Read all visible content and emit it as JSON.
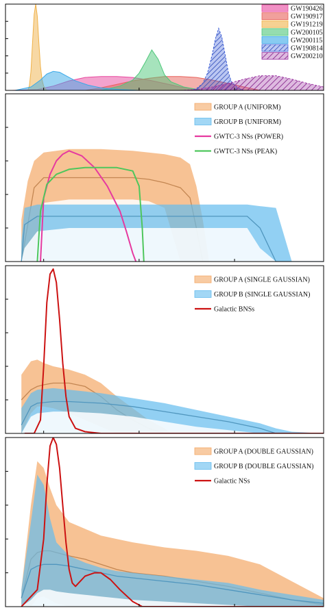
{
  "chart_data": [
    {
      "type": "area",
      "panel": "top",
      "legend_position": "top-right",
      "xlim": [
        0,
        1
      ],
      "ylim": [
        0,
        1
      ],
      "series": [
        {
          "name": "GW190426",
          "color": "#e8479e",
          "hatch": false,
          "x": [
            0.02,
            0.1,
            0.15,
            0.2,
            0.25,
            0.3,
            0.35,
            0.4,
            0.45,
            0.5,
            0.55,
            0.62
          ],
          "y": [
            0,
            0.01,
            0.05,
            0.11,
            0.15,
            0.16,
            0.16,
            0.15,
            0.12,
            0.08,
            0.04,
            0
          ]
        },
        {
          "name": "GW190917",
          "color": "#e8615a",
          "hatch": false,
          "x": [
            0.25,
            0.3,
            0.35,
            0.4,
            0.45,
            0.5,
            0.55,
            0.6,
            0.65,
            0.7,
            0.75,
            0.8
          ],
          "y": [
            0,
            0.03,
            0.07,
            0.11,
            0.14,
            0.16,
            0.16,
            0.15,
            0.12,
            0.08,
            0.04,
            0
          ]
        },
        {
          "name": "GW191219",
          "color": "#f0b24a",
          "hatch": false,
          "x": [
            0.07,
            0.075,
            0.08,
            0.085,
            0.09,
            0.095,
            0.1,
            0.105,
            0.11,
            0.115,
            0.12,
            0.125,
            0.13
          ],
          "y": [
            0,
            0.05,
            0.22,
            0.55,
            0.88,
            1.0,
            0.86,
            0.55,
            0.28,
            0.12,
            0.05,
            0.02,
            0
          ]
        },
        {
          "name": "GW200105",
          "color": "#4ec77a",
          "hatch": false,
          "x": [
            0.3,
            0.36,
            0.4,
            0.42,
            0.44,
            0.46,
            0.48,
            0.5,
            0.52,
            0.56,
            0.62
          ],
          "y": [
            0,
            0.05,
            0.12,
            0.2,
            0.33,
            0.47,
            0.36,
            0.18,
            0.1,
            0.04,
            0
          ]
        },
        {
          "name": "GW200115",
          "color": "#39a9e8",
          "hatch": false,
          "x": [
            0.03,
            0.08,
            0.11,
            0.13,
            0.15,
            0.17,
            0.19,
            0.22,
            0.26,
            0.3,
            0.36,
            0.42
          ],
          "y": [
            0,
            0.04,
            0.12,
            0.19,
            0.22,
            0.21,
            0.17,
            0.11,
            0.06,
            0.03,
            0.01,
            0
          ]
        },
        {
          "name": "GW190814",
          "color": "#3d5fd8",
          "hatch": true,
          "x": [
            0.58,
            0.6,
            0.62,
            0.635,
            0.65,
            0.66,
            0.67,
            0.68,
            0.69,
            0.7,
            0.71,
            0.73,
            0.75
          ],
          "y": [
            0,
            0.02,
            0.08,
            0.2,
            0.42,
            0.6,
            0.72,
            0.62,
            0.42,
            0.22,
            0.1,
            0.03,
            0
          ]
        },
        {
          "name": "GW200210",
          "color": "#a03aa6",
          "hatch": true,
          "x": [
            0.55,
            0.6,
            0.65,
            0.7,
            0.75,
            0.8,
            0.85,
            0.9,
            0.95,
            1.0
          ],
          "y": [
            0,
            0.01,
            0.04,
            0.08,
            0.13,
            0.17,
            0.17,
            0.13,
            0.08,
            0.04
          ]
        }
      ]
    },
    {
      "type": "area",
      "panel": "uniform",
      "legend_position": "top-right",
      "xlim": [
        0,
        1
      ],
      "ylim": [
        0,
        1
      ],
      "bands": [
        {
          "name": "GROUP A (UNIFORM)",
          "color": "#f4a866",
          "x": [
            0.05,
            0.07,
            0.09,
            0.12,
            0.2,
            0.3,
            0.4,
            0.45,
            0.5,
            0.55,
            0.58,
            0.6,
            0.62,
            0.64
          ],
          "upper": [
            0.25,
            0.48,
            0.6,
            0.65,
            0.67,
            0.67,
            0.66,
            0.65,
            0.64,
            0.62,
            0.58,
            0.45,
            0.25,
            0.0
          ],
          "lower": [
            0.0,
            0.0,
            0.0,
            0.0,
            0.0,
            0.0,
            0.0,
            0.0,
            0.0,
            0.0,
            0.0,
            0.0,
            0.0,
            0.0
          ],
          "inner_lower": [
            0.0,
            0.0,
            0.0,
            0.35,
            0.37,
            0.37,
            0.37,
            0.36,
            0.32,
            0.0,
            0.0,
            0.0,
            0.0,
            0.0
          ],
          "median": [
            0.0,
            0.22,
            0.44,
            0.5,
            0.5,
            0.5,
            0.5,
            0.49,
            0.47,
            0.44,
            0.38,
            0.2,
            0.0,
            0.0
          ]
        },
        {
          "name": "GROUP B (UNIFORM)",
          "color": "#64bcee",
          "x": [
            0.05,
            0.06,
            0.1,
            0.2,
            0.3,
            0.4,
            0.5,
            0.6,
            0.7,
            0.76,
            0.8,
            0.85,
            0.9,
            1.0
          ],
          "upper": [
            0.12,
            0.32,
            0.34,
            0.34,
            0.34,
            0.34,
            0.34,
            0.34,
            0.34,
            0.34,
            0.33,
            0.32,
            0.0,
            0.0
          ],
          "lower": [
            0.0,
            0.0,
            0.0,
            0.0,
            0.0,
            0.0,
            0.0,
            0.0,
            0.0,
            0.0,
            0.0,
            0.0,
            0.0,
            0.0
          ],
          "inner_lower": [
            0.0,
            0.08,
            0.18,
            0.2,
            0.2,
            0.2,
            0.2,
            0.2,
            0.2,
            0.2,
            0.08,
            0.0,
            0.0,
            0.0
          ],
          "median": [
            0.0,
            0.22,
            0.27,
            0.27,
            0.27,
            0.27,
            0.27,
            0.27,
            0.27,
            0.27,
            0.2,
            0.0,
            0.0,
            0.0
          ]
        }
      ],
      "lines": [
        {
          "name": "GWTC-3 NSs (POWER)",
          "color": "#e6399f",
          "x": [
            0.11,
            0.12,
            0.14,
            0.16,
            0.18,
            0.2,
            0.24,
            0.28,
            0.32,
            0.36,
            0.38,
            0.4,
            0.41
          ],
          "y": [
            0.0,
            0.38,
            0.52,
            0.6,
            0.64,
            0.66,
            0.63,
            0.56,
            0.45,
            0.3,
            0.18,
            0.05,
            0.0
          ]
        },
        {
          "name": "GWTC-3 NSs (PEAK)",
          "color": "#4ec65c",
          "x": [
            0.1,
            0.11,
            0.13,
            0.16,
            0.2,
            0.25,
            0.3,
            0.35,
            0.4,
            0.42,
            0.43,
            0.435
          ],
          "y": [
            0.0,
            0.3,
            0.46,
            0.52,
            0.55,
            0.56,
            0.56,
            0.56,
            0.54,
            0.45,
            0.2,
            0.0
          ]
        }
      ]
    },
    {
      "type": "area",
      "panel": "single-gaussian",
      "legend_position": "top-right",
      "xlim": [
        0,
        1
      ],
      "ylim": [
        0,
        1
      ],
      "bands": [
        {
          "name": "GROUP A (SINGLE GAUSSIAN)",
          "color": "#f4a866",
          "x": [
            0.05,
            0.08,
            0.1,
            0.12,
            0.15,
            0.2,
            0.25,
            0.3,
            0.35,
            0.4,
            0.45,
            0.5,
            0.52
          ],
          "upper": [
            0.35,
            0.43,
            0.44,
            0.42,
            0.4,
            0.38,
            0.35,
            0.3,
            0.22,
            0.15,
            0.08,
            0.03,
            0.0
          ],
          "lower": [
            0.0,
            0.0,
            0.0,
            0.0,
            0.0,
            0.0,
            0.0,
            0.0,
            0.0,
            0.0,
            0.0,
            0.0,
            0.0
          ],
          "inner_lower": [
            0.0,
            0.12,
            0.16,
            0.16,
            0.15,
            0.12,
            0.08,
            0.04,
            0.0,
            0.0,
            0.0,
            0.0,
            0.0
          ],
          "median": [
            0.2,
            0.26,
            0.28,
            0.29,
            0.3,
            0.3,
            0.28,
            0.22,
            0.14,
            0.08,
            0.03,
            0.0,
            0.0
          ]
        },
        {
          "name": "GROUP B (SINGLE GAUSSIAN)",
          "color": "#64bcee",
          "x": [
            0.05,
            0.08,
            0.1,
            0.15,
            0.2,
            0.3,
            0.4,
            0.5,
            0.6,
            0.7,
            0.8,
            0.85,
            0.9,
            1.0
          ],
          "upper": [
            0.15,
            0.24,
            0.26,
            0.27,
            0.26,
            0.24,
            0.21,
            0.18,
            0.14,
            0.1,
            0.06,
            0.03,
            0.01,
            0.0
          ],
          "lower": [
            0.0,
            0.0,
            0.0,
            0.0,
            0.0,
            0.0,
            0.0,
            0.0,
            0.0,
            0.0,
            0.0,
            0.0,
            0.0,
            0.0
          ],
          "inner_lower": [
            0.0,
            0.1,
            0.12,
            0.13,
            0.13,
            0.12,
            0.1,
            0.07,
            0.04,
            0.02,
            0.0,
            0.0,
            0.0,
            0.0
          ],
          "median": [
            0.05,
            0.16,
            0.18,
            0.19,
            0.19,
            0.18,
            0.16,
            0.13,
            0.1,
            0.07,
            0.03,
            0.0,
            0.0,
            0.0
          ]
        }
      ],
      "lines": [
        {
          "name": "Galactic BNSs",
          "color": "#cc1111",
          "x": [
            0.06,
            0.09,
            0.11,
            0.12,
            0.13,
            0.14,
            0.15,
            0.16,
            0.17,
            0.18,
            0.19,
            0.2,
            0.22,
            0.25,
            0.3,
            0.4,
            1.0
          ],
          "y": [
            0.0,
            0.0,
            0.08,
            0.4,
            0.78,
            0.95,
            0.98,
            0.9,
            0.68,
            0.42,
            0.22,
            0.1,
            0.03,
            0.01,
            0.0,
            0.0,
            0.0
          ]
        }
      ]
    },
    {
      "type": "area",
      "panel": "double-gaussian",
      "legend_position": "top-right",
      "xlim": [
        0,
        1
      ],
      "ylim": [
        0,
        1
      ],
      "bands": [
        {
          "name": "GROUP A (DOUBLE GAUSSIAN)",
          "color": "#f4a866",
          "x": [
            0.05,
            0.08,
            0.1,
            0.12,
            0.14,
            0.16,
            0.2,
            0.25,
            0.3,
            0.35,
            0.4,
            0.5,
            0.6,
            0.7,
            0.8,
            0.9,
            1.0
          ],
          "upper": [
            0.1,
            0.6,
            0.86,
            0.82,
            0.7,
            0.6,
            0.5,
            0.46,
            0.42,
            0.4,
            0.38,
            0.35,
            0.33,
            0.3,
            0.25,
            0.15,
            0.05
          ],
          "lower": [
            0.0,
            0.0,
            0.0,
            0.0,
            0.0,
            0.0,
            0.0,
            0.0,
            0.0,
            0.0,
            0.0,
            0.0,
            0.0,
            0.0,
            0.0,
            0.0,
            0.0
          ],
          "inner_lower": [
            0.0,
            0.0,
            0.05,
            0.06,
            0.04,
            0.02,
            0.0,
            0.0,
            0.0,
            0.0,
            0.0,
            0.0,
            0.0,
            0.0,
            0.0,
            0.0,
            0.0
          ],
          "median": [
            0.05,
            0.28,
            0.32,
            0.33,
            0.33,
            0.32,
            0.3,
            0.28,
            0.25,
            0.22,
            0.2,
            0.18,
            0.15,
            0.12,
            0.08,
            0.04,
            0.01
          ]
        },
        {
          "name": "GROUP B (DOUBLE GAUSSIAN)",
          "color": "#64bcee",
          "x": [
            0.05,
            0.08,
            0.1,
            0.12,
            0.14,
            0.16,
            0.2,
            0.25,
            0.3,
            0.35,
            0.4,
            0.5,
            0.6,
            0.7,
            0.8,
            0.9,
            1.0
          ],
          "upper": [
            0.1,
            0.5,
            0.78,
            0.72,
            0.52,
            0.38,
            0.3,
            0.26,
            0.23,
            0.21,
            0.2,
            0.18,
            0.16,
            0.14,
            0.1,
            0.07,
            0.04
          ],
          "lower": [
            0.0,
            0.0,
            0.0,
            0.0,
            0.0,
            0.0,
            0.0,
            0.0,
            0.0,
            0.0,
            0.0,
            0.0,
            0.0,
            0.0,
            0.0,
            0.0,
            0.0
          ],
          "inner_lower": [
            0.0,
            0.04,
            0.08,
            0.1,
            0.1,
            0.09,
            0.08,
            0.07,
            0.06,
            0.05,
            0.04,
            0.03,
            0.02,
            0.01,
            0.0,
            0.0,
            0.0
          ],
          "median": [
            0.05,
            0.22,
            0.24,
            0.25,
            0.25,
            0.25,
            0.24,
            0.22,
            0.2,
            0.18,
            0.17,
            0.15,
            0.13,
            0.1,
            0.07,
            0.04,
            0.02
          ]
        }
      ],
      "lines": [
        {
          "name": "Galactic NSs",
          "color": "#cc1111",
          "x": [
            0.05,
            0.1,
            0.12,
            0.13,
            0.14,
            0.15,
            0.16,
            0.17,
            0.18,
            0.19,
            0.2,
            0.21,
            0.22,
            0.23,
            0.25,
            0.28,
            0.3,
            0.33,
            0.36,
            0.4,
            0.43,
            0.45,
            0.5,
            1.0
          ],
          "y": [
            0.0,
            0.1,
            0.4,
            0.72,
            0.95,
            1.0,
            0.96,
            0.82,
            0.6,
            0.38,
            0.22,
            0.14,
            0.12,
            0.14,
            0.18,
            0.2,
            0.2,
            0.16,
            0.1,
            0.03,
            0.0,
            0.0,
            0.0,
            0.0
          ]
        }
      ]
    }
  ]
}
